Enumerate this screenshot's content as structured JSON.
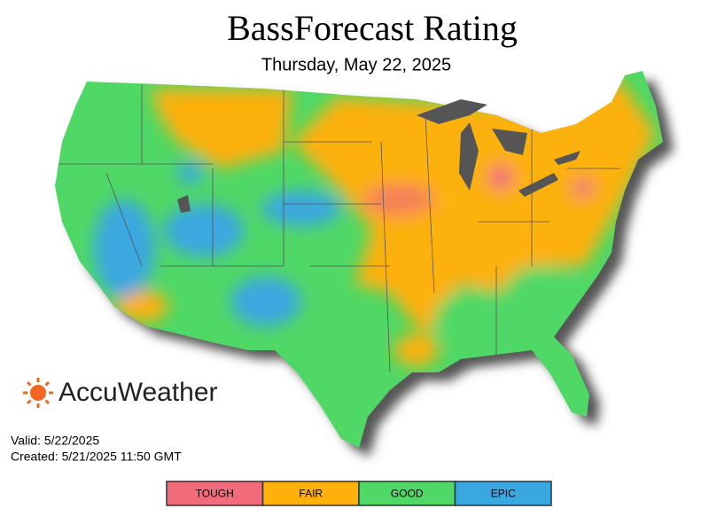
{
  "header": {
    "title": "BassForecast Rating",
    "subtitle": "Thursday, May 22, 2025"
  },
  "brand": "AccuWeather",
  "footer": {
    "valid": "Valid: 5/22/2025",
    "created": "Created: 5/21/2025 11:50 GMT"
  },
  "legend": [
    {
      "label": "TOUGH",
      "color": "#f26b7b"
    },
    {
      "label": "FAIR",
      "color": "#fdb10a"
    },
    {
      "label": "GOOD",
      "color": "#4fd866"
    },
    {
      "label": "EPIC",
      "color": "#3aa8e0"
    }
  ]
}
